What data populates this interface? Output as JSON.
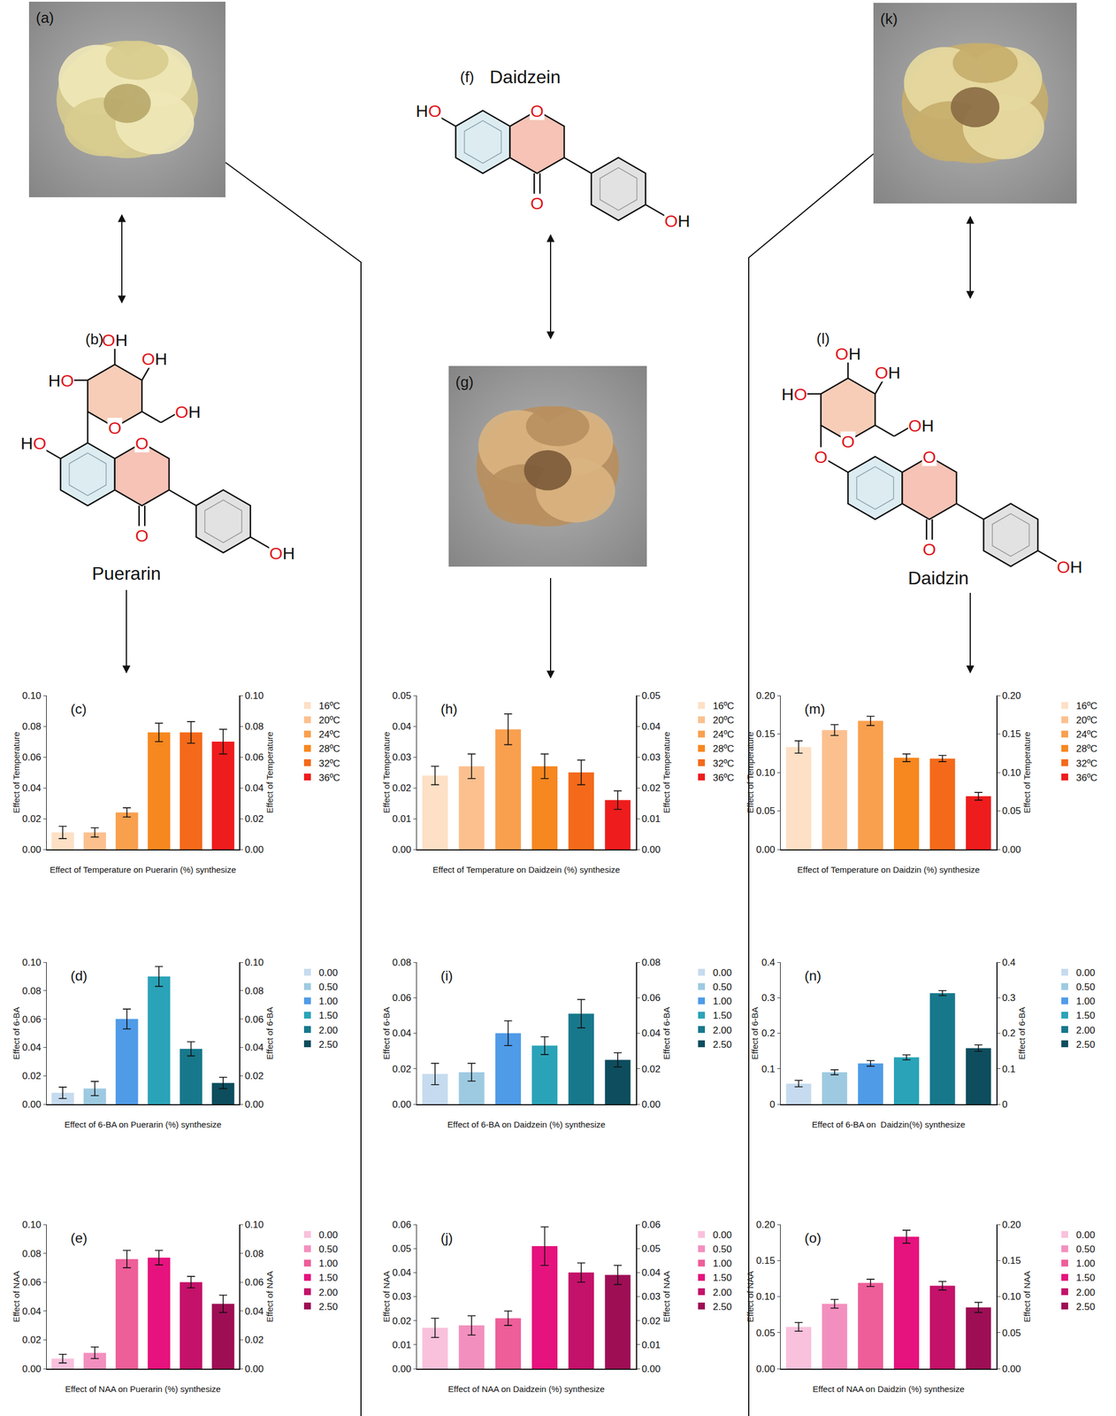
{
  "panels": {
    "images": [
      {
        "label": "(a)"
      },
      {
        "label": "(g)"
      },
      {
        "label": "(k)"
      }
    ],
    "structures": [
      {
        "label": "(b)",
        "name": "Puerarin",
        "ring_oxygen": "O",
        "carbonyl": "O",
        "substituent_7": "HO",
        "substituent_4p": "OH",
        "sugar": {
          "ring_oxygen": "O",
          "substituents": [
            "OH",
            "OH",
            "OH",
            "HO"
          ]
        }
      },
      {
        "label": "(f)",
        "name": "Daidzein",
        "ring_oxygen": "O",
        "carbonyl": "O",
        "substituent_7": "HO",
        "substituent_4p": "OH"
      },
      {
        "label": "(l)",
        "name": "Daidzin",
        "ring_oxygen": "O",
        "carbonyl": "O",
        "substituent_7": "O",
        "substituent_4p": "OH",
        "sugar": {
          "ring_oxygen": "O",
          "substituents": [
            "OH",
            "OH",
            "OH",
            "HO"
          ]
        }
      }
    ]
  },
  "chart_data": [
    {
      "type": "bar",
      "title": "(c)",
      "x_label": "Effect of Temperature on Puerarin (%) synthesize",
      "y_label": "Effect of Temperature",
      "y2_label": "Effect of Temperature",
      "categories": [
        "16ºC",
        "20ºC",
        "24ºC",
        "28ºC",
        "32ºC",
        "36ºC"
      ],
      "values": [
        0.011,
        0.011,
        0.024,
        0.076,
        0.076,
        0.07
      ],
      "errors": [
        0.004,
        0.003,
        0.003,
        0.006,
        0.007,
        0.008
      ],
      "colors": [
        "#fde0c5",
        "#fcc08f",
        "#f9a04f",
        "#f7871f",
        "#f46a1a",
        "#ee1c1c"
      ],
      "ylim": [
        0,
        0.1
      ],
      "yticks": [
        {
          "value": 0,
          "label": "0.00"
        },
        0.02,
        0.04,
        0.06,
        0.08,
        {
          "value": 0.1,
          "label": "0.10"
        }
      ],
      "y2lim": [
        0,
        0.1
      ],
      "y2ticks": [
        {
          "value": 0,
          "label": "0.00"
        },
        0.02,
        0.04,
        0.06,
        0.08,
        {
          "value": 0.1,
          "label": "0.10"
        }
      ],
      "grid": false,
      "legend": "right",
      "tick_labels": "y"
    },
    {
      "type": "bar",
      "title": "(d)",
      "x_label": "Effect of 6-BA on Puerarin (%) synthesize",
      "y_label": "Effect of 6-BA",
      "y2_label": "Effect of 6-BA",
      "categories": [
        "0.00",
        "0.50",
        "1.00",
        "1.50",
        "2.00",
        "2.50"
      ],
      "values": [
        0.008,
        0.011,
        0.06,
        0.09,
        0.039,
        0.015
      ],
      "errors": [
        0.004,
        0.005,
        0.007,
        0.007,
        0.005,
        0.004
      ],
      "colors": [
        "#c6dbef",
        "#9ecae1",
        "#4f9be8",
        "#2aa3b8",
        "#17788c",
        "#0d4d5e"
      ],
      "ylim": [
        0,
        0.1
      ],
      "yticks": [
        {
          "value": 0,
          "label": "0.00"
        },
        0.02,
        0.04,
        0.06,
        0.08,
        {
          "value": 0.1,
          "label": "0.10"
        }
      ],
      "y2lim": [
        0,
        0.1
      ],
      "y2ticks": [
        {
          "value": 0,
          "label": "0.00"
        },
        0.02,
        0.04,
        0.06,
        0.08,
        {
          "value": 0.1,
          "label": "0.10"
        }
      ],
      "grid": false,
      "legend": "right",
      "tick_labels": "y"
    },
    {
      "type": "bar",
      "title": "(e)",
      "x_label": "Effect of NAA on Puerarin (%) synthesize",
      "y_label": "Effect of NAA",
      "y2_label": "Effect of NAA",
      "categories": [
        "0.00",
        "0.50",
        "1.00",
        "1.50",
        "2.00",
        "2.50"
      ],
      "values": [
        0.007,
        0.011,
        0.076,
        0.077,
        0.06,
        0.045
      ],
      "errors": [
        0.003,
        0.004,
        0.006,
        0.005,
        0.004,
        0.006
      ],
      "colors": [
        "#f9c1dc",
        "#f38fbe",
        "#ee5e99",
        "#e6127d",
        "#c4116a",
        "#9e0e55"
      ],
      "ylim": [
        0,
        0.1
      ],
      "yticks": [
        {
          "value": 0,
          "label": "0.00"
        },
        0.02,
        0.04,
        0.06,
        0.08,
        {
          "value": 0.1,
          "label": "0.10"
        }
      ],
      "y2lim": [
        0,
        0.1
      ],
      "y2ticks": [
        {
          "value": 0,
          "label": "0.00"
        },
        0.02,
        0.04,
        0.06,
        0.08,
        {
          "value": 0.1,
          "label": "0.10"
        }
      ],
      "grid": false,
      "legend": "right",
      "tick_labels": "y"
    },
    {
      "type": "bar",
      "title": "(h)",
      "x_label": "Effect of Temperature on Daidzein (%) synthesize",
      "y_label": "Effect of Temperature",
      "y2_label": "Effect of Temperature",
      "categories": [
        "16ºC",
        "20ºC",
        "24ºC",
        "28ºC",
        "32ºC",
        "36ºC"
      ],
      "values": [
        0.024,
        0.027,
        0.039,
        0.027,
        0.025,
        0.016
      ],
      "errors": [
        0.003,
        0.004,
        0.005,
        0.004,
        0.004,
        0.003
      ],
      "colors": [
        "#fde0c5",
        "#fcc08f",
        "#f9a04f",
        "#f7871f",
        "#f46a1a",
        "#ee1c1c"
      ],
      "ylim": [
        0,
        0.05
      ],
      "yticks": [
        {
          "value": 0,
          "label": "0.00"
        },
        0.01,
        0.02,
        0.03,
        0.04,
        0.05
      ],
      "y2lim": [
        0,
        0.05
      ],
      "y2ticks": [
        {
          "value": 0,
          "label": "0.00"
        },
        0.01,
        0.02,
        0.03,
        0.04,
        0.05
      ],
      "grid": false,
      "legend": "right",
      "tick_labels": "y"
    },
    {
      "type": "bar",
      "title": "(i)",
      "x_label": "Effect of 6-BA on Daidzein (%) synthesize",
      "y_label": "Effect of 6-BA",
      "y2_label": "Effect of 6-BA",
      "categories": [
        "0.00",
        "0.50",
        "1.00",
        "1.50",
        "2.00",
        "2.50"
      ],
      "values": [
        0.017,
        0.018,
        0.04,
        0.033,
        0.051,
        0.025
      ],
      "errors": [
        0.006,
        0.005,
        0.007,
        0.005,
        0.008,
        0.004
      ],
      "colors": [
        "#c6dbef",
        "#9ecae1",
        "#4f9be8",
        "#2aa3b8",
        "#17788c",
        "#0d4d5e"
      ],
      "ylim": [
        0,
        0.08
      ],
      "yticks": [
        {
          "value": 0,
          "label": "0.00"
        },
        0.02,
        0.04,
        0.06,
        0.08
      ],
      "y2lim": [
        0,
        0.08
      ],
      "y2ticks": [
        {
          "value": 0,
          "label": "0.00"
        },
        0.02,
        0.04,
        0.06,
        0.08
      ],
      "grid": false,
      "legend": "right",
      "tick_labels": "y"
    },
    {
      "type": "bar",
      "title": "(j)",
      "x_label": "Effect of NAA on Daidzein (%) synthesize",
      "y_label": "Effect of NAA",
      "y2_label": "Effect of NAA",
      "categories": [
        "0.00",
        "0.50",
        "1.00",
        "1.50",
        "2.00",
        "2.50"
      ],
      "values": [
        0.017,
        0.018,
        0.021,
        0.051,
        0.04,
        0.039
      ],
      "errors": [
        0.004,
        0.004,
        0.003,
        0.008,
        0.004,
        0.004
      ],
      "colors": [
        "#f9c1dc",
        "#f38fbe",
        "#ee5e99",
        "#e6127d",
        "#c4116a",
        "#9e0e55"
      ],
      "ylim": [
        0,
        0.06
      ],
      "yticks": [
        {
          "value": 0,
          "label": "0.00"
        },
        0.01,
        0.02,
        0.03,
        0.04,
        0.05,
        0.06
      ],
      "y2lim": [
        0,
        0.06
      ],
      "y2ticks": [
        {
          "value": 0,
          "label": "0.00"
        },
        0.01,
        0.02,
        0.03,
        0.04,
        0.05,
        0.06
      ],
      "grid": false,
      "legend": "right",
      "tick_labels": "y"
    },
    {
      "type": "bar",
      "title": "(m)",
      "x_label": "Effect of Temperature on Daidzin (%) synthesize",
      "y_label": "Effect of Temperature",
      "y2_label": "Effect of Temperature",
      "categories": [
        "16ºC",
        "20ºC",
        "24ºC",
        "28ºC",
        "32ºC",
        "36ºC"
      ],
      "values": [
        0.133,
        0.155,
        0.167,
        0.119,
        0.118,
        0.069
      ],
      "errors": [
        0.008,
        0.007,
        0.006,
        0.005,
        0.004,
        0.005
      ],
      "colors": [
        "#fde0c5",
        "#fcc08f",
        "#f9a04f",
        "#f7871f",
        "#f46a1a",
        "#ee1c1c"
      ],
      "ylim": [
        0,
        0.2
      ],
      "yticks": [
        {
          "value": 0,
          "label": "0.00"
        },
        0.05,
        {
          "value": 0.1,
          "label": "0.10"
        },
        0.15,
        {
          "value": 0.2,
          "label": "0.20"
        }
      ],
      "y2lim": [
        0,
        0.2
      ],
      "y2ticks": [
        {
          "value": 0,
          "label": "0.00"
        },
        0.05,
        {
          "value": 0.1,
          "label": "0.10"
        },
        0.15,
        {
          "value": 0.2,
          "label": "0.20"
        }
      ],
      "grid": false,
      "legend": "right",
      "tick_labels": "y"
    },
    {
      "type": "bar",
      "title": "(n)",
      "x_label": "Effect of 6-BA on  Daidzin(%) synthesize",
      "y_label": "Effect of 6-BA",
      "y2_label": "Effect of 6-BA",
      "categories": [
        "0.00",
        "0.50",
        "1.00",
        "1.50",
        "2.00",
        "2.50"
      ],
      "values": [
        0.058,
        0.09,
        0.115,
        0.132,
        0.313,
        0.158
      ],
      "errors": [
        0.009,
        0.007,
        0.008,
        0.007,
        0.007,
        0.009
      ],
      "colors": [
        "#c6dbef",
        "#9ecae1",
        "#4f9be8",
        "#2aa3b8",
        "#17788c",
        "#0d4d5e"
      ],
      "ylim": [
        0,
        0.4
      ],
      "yticks": [
        0,
        0.1,
        0.2,
        0.3,
        0.4
      ],
      "y2lim": [
        0,
        0.4
      ],
      "y2ticks": [
        0,
        0.1,
        0.2,
        0.3,
        0.4
      ],
      "grid": false,
      "legend": "right",
      "tick_labels": "y"
    },
    {
      "type": "bar",
      "title": "(o)",
      "x_label": "Effect of NAA on Daidzin (%) synthesize",
      "y_label": "Effect of NAA",
      "y2_label": "Effect of NAA",
      "categories": [
        "0.00",
        "0.50",
        "1.00",
        "1.50",
        "2.00",
        "2.50"
      ],
      "values": [
        0.058,
        0.09,
        0.119,
        0.183,
        0.115,
        0.085
      ],
      "errors": [
        0.006,
        0.006,
        0.005,
        0.009,
        0.006,
        0.007
      ],
      "colors": [
        "#f9c1dc",
        "#f38fbe",
        "#ee5e99",
        "#e6127d",
        "#c4116a",
        "#9e0e55"
      ],
      "ylim": [
        0,
        0.2
      ],
      "yticks": [
        {
          "value": 0,
          "label": "0.00"
        },
        0.05,
        {
          "value": 0.1,
          "label": "0.10"
        },
        0.15,
        {
          "value": 0.2,
          "label": "0.20"
        }
      ],
      "y2lim": [
        0,
        0.2
      ],
      "y2ticks": [
        {
          "value": 0,
          "label": "0.00"
        },
        0.05,
        {
          "value": 0.1,
          "label": "0.10"
        },
        0.15,
        {
          "value": 0.2,
          "label": "0.20"
        }
      ],
      "grid": false,
      "legend": "right",
      "tick_labels": "y"
    }
  ]
}
